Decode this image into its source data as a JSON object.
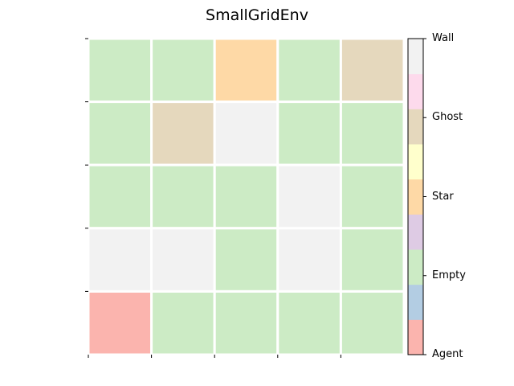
{
  "title": "SmallGridEnv",
  "grid": {
    "rows": 5,
    "cols": 5,
    "cells": [
      [
        "Empty",
        "Empty",
        "Star",
        "Empty",
        "Ghost"
      ],
      [
        "Empty",
        "Ghost",
        "Wall",
        "Empty",
        "Empty"
      ],
      [
        "Empty",
        "Empty",
        "Empty",
        "Wall",
        "Empty"
      ],
      [
        "Wall",
        "Wall",
        "Empty",
        "Wall",
        "Empty"
      ],
      [
        "Agent",
        "Empty",
        "Empty",
        "Empty",
        "Empty"
      ]
    ]
  },
  "palette": {
    "Agent": "#fbb4ae",
    "Empty": "#ccebc5",
    "Star": "#fed9a6",
    "Ghost": "#e5d8bd",
    "Wall": "#f2f2f2"
  },
  "colorbar": {
    "segments": [
      "#fbb4ae",
      "#b3cde3",
      "#ccebc5",
      "#decbe4",
      "#fed9a6",
      "#ffffcc",
      "#e5d8bd",
      "#fddaec",
      "#f2f2f2"
    ],
    "labels": [
      "Agent",
      "Empty",
      "Star",
      "Ghost",
      "Wall"
    ]
  }
}
